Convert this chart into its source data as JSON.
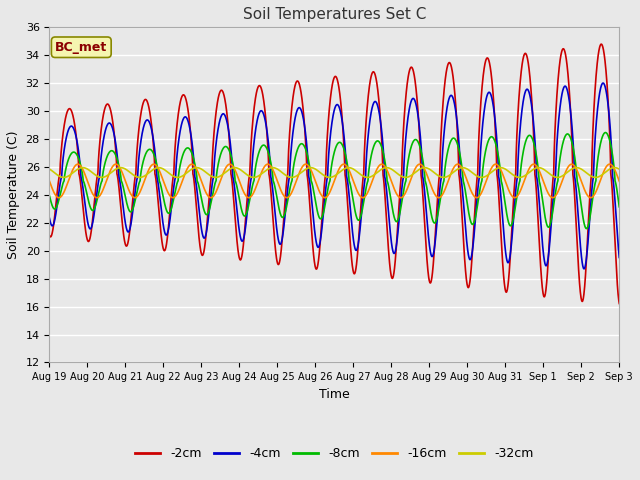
{
  "title": "Soil Temperatures Set C",
  "xlabel": "Time",
  "ylabel": "Soil Temperature (C)",
  "annotation": "BC_met",
  "ylim": [
    12,
    36
  ],
  "yticks": [
    12,
    14,
    16,
    18,
    20,
    22,
    24,
    26,
    28,
    30,
    32,
    34,
    36
  ],
  "fig_bg_color": "#e8e8e8",
  "plot_bg_color": "#e8e8e8",
  "series": [
    {
      "label": "-2cm",
      "color": "#cc0000"
    },
    {
      "label": "-4cm",
      "color": "#0000cc"
    },
    {
      "label": "-8cm",
      "color": "#00bb00"
    },
    {
      "label": "-16cm",
      "color": "#ff8800"
    },
    {
      "label": "-32cm",
      "color": "#cccc00"
    }
  ],
  "x_tick_labels": [
    "Aug 19",
    "Aug 20",
    "Aug 21",
    "Aug 22",
    "Aug 23",
    "Aug 24",
    "Aug 25",
    "Aug 26",
    "Aug 27",
    "Aug 28",
    "Aug 29",
    "Aug 30",
    "Aug 31",
    "Sep 1",
    "Sep 2",
    "Sep 3"
  ],
  "x_tick_positions": [
    0,
    1,
    2,
    3,
    4,
    5,
    6,
    7,
    8,
    9,
    10,
    11,
    12,
    13,
    14,
    15
  ]
}
